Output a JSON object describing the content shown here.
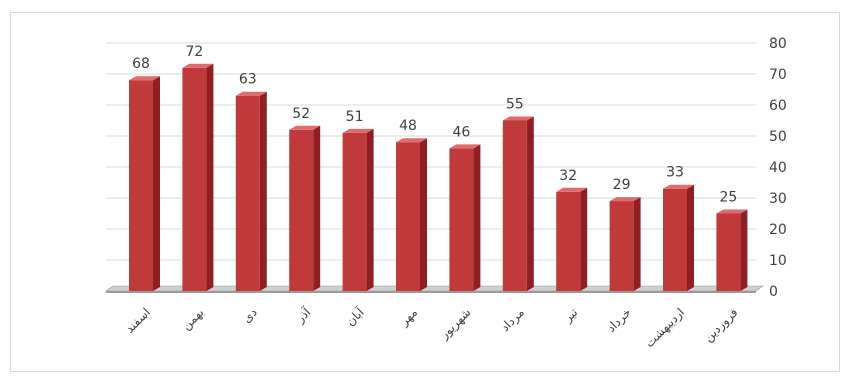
{
  "chart_data": {
    "type": "bar",
    "style": "3d-column",
    "categories": [
      "اسفند",
      "بهمن",
      "دی",
      "آذر",
      "آبان",
      "مهر",
      "شهریور",
      "مرداد",
      "تیر",
      "خرداد",
      "اردیبهشت",
      "فروردین"
    ],
    "values": [
      68,
      72,
      63,
      52,
      51,
      48,
      46,
      55,
      32,
      29,
      33,
      25
    ],
    "ylim": [
      0,
      80
    ],
    "yticks": [
      "0",
      "10",
      "20",
      "30",
      "40",
      "50",
      "60",
      "70",
      "80"
    ],
    "y_axis_position": "right",
    "grid": true,
    "legend": "none",
    "colors": {
      "bar_front": "#c0393b",
      "bar_top": "#e06a6c",
      "bar_side": "#8f1f22",
      "grid": "#d9d9d9",
      "floor": "#9a9a9a"
    }
  }
}
